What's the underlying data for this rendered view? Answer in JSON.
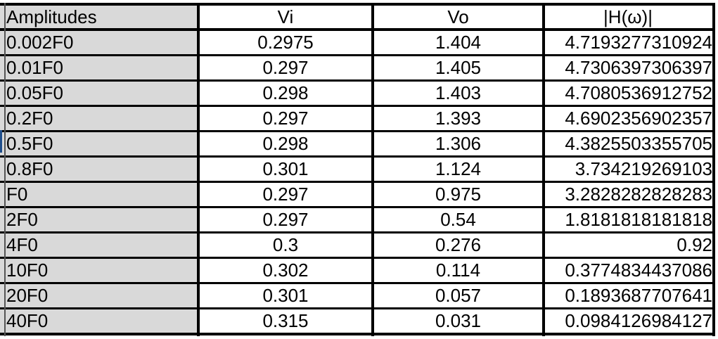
{
  "table": {
    "headers": [
      "Amplitudes",
      "Vi",
      "Vo",
      "|H(ω)|"
    ],
    "rows": [
      [
        "0.002F0",
        "0.2975",
        "1.404",
        "4.7193277310924"
      ],
      [
        "0.01F0",
        "0.297",
        "1.405",
        "4.7306397306397"
      ],
      [
        "0.05F0",
        "0.298",
        "1.403",
        "4.7080536912752"
      ],
      [
        "0.2F0",
        "0.297",
        "1.393",
        "4.6902356902357"
      ],
      [
        "0.5F0",
        "0.298",
        "1.306",
        "4.3825503355705"
      ],
      [
        "0.8F0",
        "0.301",
        "1.124",
        "3.734219269103"
      ],
      [
        "F0",
        "0.297",
        "0.975",
        "3.2828282828283"
      ],
      [
        "2F0",
        "0.297",
        "0.54",
        "1.8181818181818"
      ],
      [
        "4F0",
        "0.3",
        "0.276",
        "0.92"
      ],
      [
        "10F0",
        "0.302",
        "0.114",
        "0.3774834437086"
      ],
      [
        "20F0",
        "0.301",
        "0.057",
        "0.1893687707641"
      ],
      [
        "40F0",
        "0.315",
        "0.031",
        "0.0984126984127"
      ]
    ]
  }
}
